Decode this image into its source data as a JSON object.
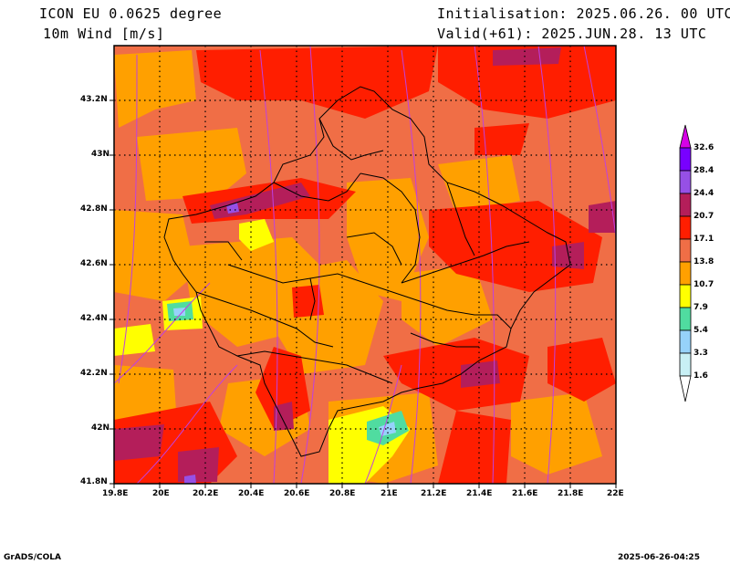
{
  "header": {
    "model": "ICON EU 0.0625 degree",
    "variable": "10m Wind [m/s]",
    "init": "Initialisation: 2025.06.26. 00 UTC",
    "valid": "Valid(+61): 2025.JUN.28. 13 UTC"
  },
  "map": {
    "lon_ticks": [
      "19.8E",
      "20E",
      "20.2E",
      "20.4E",
      "20.6E",
      "20.8E",
      "21E",
      "21.2E",
      "21.4E",
      "21.6E",
      "21.8E",
      "22E"
    ],
    "lat_ticks": [
      "43.2N",
      "43N",
      "42.8N",
      "42.6N",
      "42.4N",
      "42.2N",
      "42N",
      "41.8N"
    ],
    "lon_range": [
      19.8,
      22.0
    ],
    "lat_range": [
      41.8,
      43.4
    ],
    "grid": true
  },
  "colorbar": {
    "labels": [
      "32.6",
      "28.4",
      "24.4",
      "20.7",
      "17.1",
      "13.8",
      "10.7",
      "7.9",
      "5.4",
      "3.3",
      "1.6"
    ],
    "colors": {
      "c1": "#c8f0f5",
      "c2": "#96d2fa",
      "c3": "#50dca0",
      "c4": "#ffff00",
      "c5": "#ffa000",
      "c6": "#f06e46",
      "c7": "#ff1e00",
      "c8": "#b41e5a",
      "c9": "#9650e6",
      "c10": "#7800ff",
      "c11": "#d600e6"
    }
  },
  "footer": {
    "left": "GrADS/COLA",
    "right": "2025-06-26-04:25"
  }
}
